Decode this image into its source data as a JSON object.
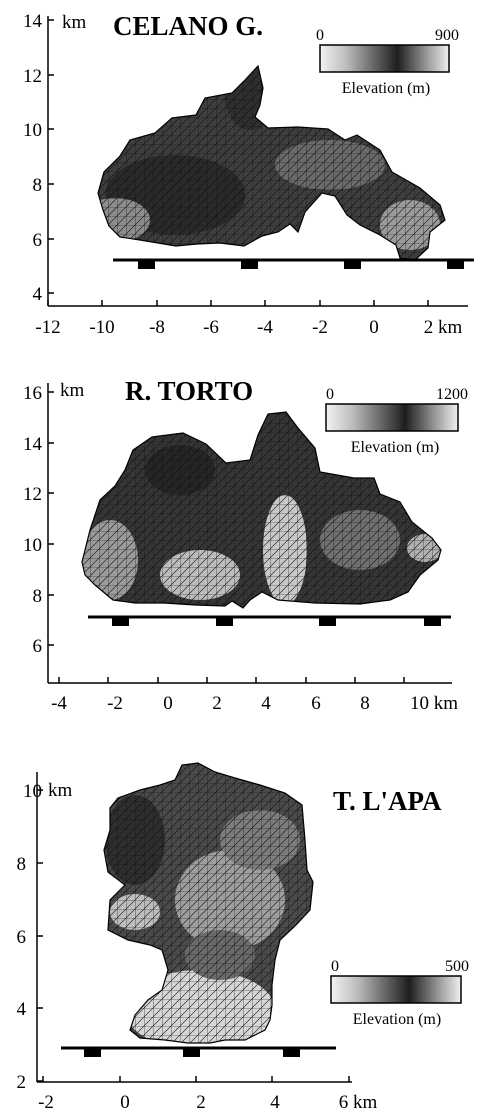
{
  "colors": {
    "axis": "#000000",
    "mesh_line": "#111111",
    "dark": "#2b2b2b",
    "light": "#e6e6e6"
  },
  "panels": [
    {
      "id": "celano",
      "title": "CELANO G.",
      "x_unit": "km",
      "y_unit": "km",
      "x_ticks": [
        "-12",
        "-10",
        "-8",
        "-6",
        "-4",
        "-2",
        "0",
        "2 km"
      ],
      "y_ticks": [
        "4",
        "6",
        "8",
        "10",
        "12",
        "14"
      ],
      "legend": {
        "min": "0",
        "max": "900",
        "label": "Elevation (m)"
      }
    },
    {
      "id": "torto",
      "title": "R. TORTO",
      "x_unit": "km",
      "y_unit": "km",
      "x_ticks": [
        "-4",
        "-2",
        "0",
        "2",
        "4",
        "6",
        "8",
        "10 km"
      ],
      "y_ticks": [
        "6",
        "8",
        "10",
        "12",
        "14",
        "16"
      ],
      "legend": {
        "min": "0",
        "max": "1200",
        "label": "Elevation (m)"
      }
    },
    {
      "id": "lapa",
      "title": "T. L'APA",
      "x_unit": "km",
      "y_unit": "km",
      "x_ticks": [
        "-2",
        "0",
        "2",
        "4",
        "6 km"
      ],
      "y_ticks": [
        "2",
        "4",
        "6",
        "8",
        "10"
      ],
      "legend": {
        "min": "0",
        "max": "500",
        "label": "Elevation (m)"
      }
    }
  ]
}
